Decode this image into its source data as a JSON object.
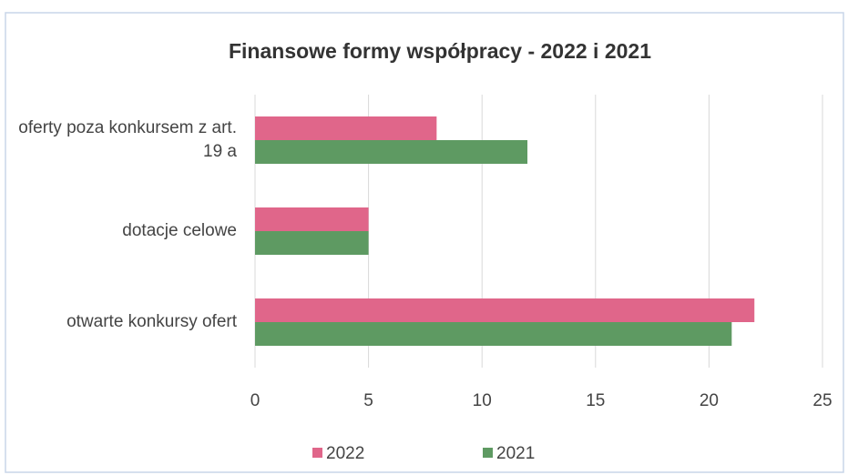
{
  "chart_data": {
    "type": "hbar",
    "title": "Finansowe formy współpracy - 2022 i 2021",
    "categories": [
      "oferty poza konkursem z art. 19 a",
      "dotacje celowe",
      "otwarte konkursy ofert"
    ],
    "series": [
      {
        "name": "2022",
        "color": "#e0668a",
        "values": [
          8,
          5,
          22
        ]
      },
      {
        "name": "2021",
        "color": "#5e9a62",
        "values": [
          12,
          5,
          21
        ]
      }
    ],
    "xlim": [
      0,
      25
    ],
    "xticks": [
      0,
      5,
      10,
      15,
      20,
      25
    ],
    "grid": true,
    "legend": "bottom"
  }
}
